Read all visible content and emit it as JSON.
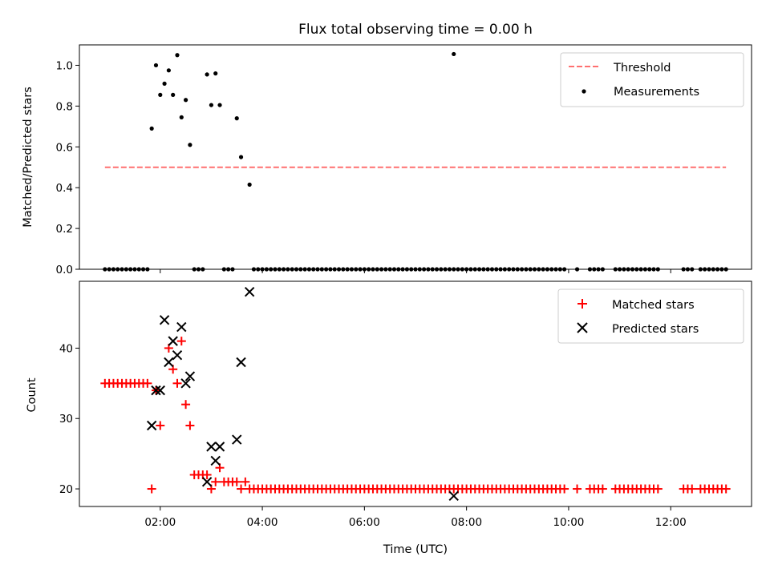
{
  "chart_data": [
    {
      "type": "scatter",
      "title": "Flux total observing time = 0.00 h",
      "xlabel": "",
      "ylabel": "Matched/Predicted stars",
      "xlim": [
        "00:25",
        "13:35"
      ],
      "ylim": [
        0,
        1.1
      ],
      "yticks": [
        "0.0",
        "0.2",
        "0.4",
        "0.6",
        "0.8",
        "1.0"
      ],
      "threshold": {
        "value": 0.5,
        "x_range": [
          "00:55",
          "13:05"
        ],
        "color": "#ff7070"
      },
      "legend": {
        "position": "upper right",
        "entries": [
          "Threshold",
          "Measurements"
        ]
      },
      "series": [
        {
          "name": "Measurements",
          "marker": "dot",
          "color": "#000000",
          "points": [
            [
              "01:50",
              0.69
            ],
            [
              "01:55",
              1.0
            ],
            [
              "02:00",
              0.855
            ],
            [
              "02:05",
              0.91
            ],
            [
              "02:10",
              0.975
            ],
            [
              "02:15",
              0.855
            ],
            [
              "02:20",
              1.05
            ],
            [
              "02:25",
              0.745
            ],
            [
              "02:30",
              0.83
            ],
            [
              "02:35",
              0.61
            ],
            [
              "02:55",
              0.955
            ],
            [
              "03:00",
              0.805
            ],
            [
              "03:05",
              0.96
            ],
            [
              "03:10",
              0.805
            ],
            [
              "03:30",
              0.74
            ],
            [
              "03:35",
              0.55
            ],
            [
              "03:45",
              0.415
            ],
            [
              "07:45",
              1.055
            ]
          ],
          "zero_ranges": [
            [
              "00:55",
              "01:45"
            ],
            [
              "02:40",
              "02:50"
            ],
            [
              "03:15",
              "03:25"
            ],
            [
              "03:50",
              "09:55"
            ],
            [
              "10:10",
              "10:10"
            ],
            [
              "10:25",
              "10:40"
            ],
            [
              "10:55",
              "11:45"
            ],
            [
              "12:15",
              "12:25"
            ],
            [
              "12:35",
              "13:05"
            ]
          ]
        }
      ]
    },
    {
      "type": "scatter",
      "title": "",
      "xlabel": "Time (UTC)",
      "ylabel": "Count",
      "xlim": [
        "00:25",
        "13:35"
      ],
      "ylim": [
        17.5,
        49.5
      ],
      "yticks": [
        "20",
        "30",
        "40"
      ],
      "xticks": [
        "02:00",
        "04:00",
        "06:00",
        "08:00",
        "10:00",
        "12:00"
      ],
      "legend": {
        "position": "upper right",
        "entries": [
          "Matched stars",
          "Predicted stars"
        ]
      },
      "series": [
        {
          "name": "Matched stars",
          "marker": "plus",
          "color": "#ff0000",
          "points": [
            [
              "01:50",
              20
            ],
            [
              "02:00",
              29
            ],
            [
              "02:10",
              40
            ],
            [
              "02:15",
              37
            ],
            [
              "02:20",
              35
            ],
            [
              "02:25",
              41
            ],
            [
              "02:30",
              32
            ],
            [
              "02:35",
              29
            ],
            [
              "02:40",
              22
            ],
            [
              "02:45",
              22
            ],
            [
              "02:50",
              22
            ],
            [
              "02:55",
              22
            ],
            [
              "03:00",
              20
            ],
            [
              "03:05",
              21
            ],
            [
              "03:10",
              23
            ],
            [
              "03:15",
              21
            ],
            [
              "03:20",
              21
            ],
            [
              "03:25",
              21
            ],
            [
              "03:30",
              21
            ],
            [
              "03:35",
              20
            ],
            [
              "03:40",
              21
            ],
            [
              "07:45",
              20
            ]
          ],
          "constant_runs": [
            {
              "value": 35,
              "range": [
                "00:55",
                "01:45"
              ]
            },
            {
              "value": 34,
              "range": [
                "01:55",
                "01:55"
              ]
            },
            {
              "value": 20,
              "range": [
                "03:45",
                "07:40"
              ]
            },
            {
              "value": 20,
              "range": [
                "07:50",
                "09:55"
              ]
            },
            {
              "value": 20,
              "range": [
                "10:10",
                "10:10"
              ]
            },
            {
              "value": 20,
              "range": [
                "10:25",
                "10:40"
              ]
            },
            {
              "value": 20,
              "range": [
                "10:55",
                "11:45"
              ]
            },
            {
              "value": 20,
              "range": [
                "12:15",
                "12:25"
              ]
            },
            {
              "value": 20,
              "range": [
                "12:35",
                "13:05"
              ]
            }
          ]
        },
        {
          "name": "Predicted stars",
          "marker": "x",
          "color": "#000000",
          "points": [
            [
              "01:50",
              29
            ],
            [
              "01:55",
              34
            ],
            [
              "02:00",
              34
            ],
            [
              "02:05",
              44
            ],
            [
              "02:10",
              38
            ],
            [
              "02:15",
              41
            ],
            [
              "02:20",
              39
            ],
            [
              "02:25",
              43
            ],
            [
              "02:30",
              35
            ],
            [
              "02:35",
              36
            ],
            [
              "02:55",
              21
            ],
            [
              "03:00",
              26
            ],
            [
              "03:05",
              24
            ],
            [
              "03:10",
              26
            ],
            [
              "03:30",
              27
            ],
            [
              "03:35",
              38
            ],
            [
              "03:45",
              48
            ],
            [
              "07:45",
              19
            ]
          ]
        }
      ]
    }
  ]
}
